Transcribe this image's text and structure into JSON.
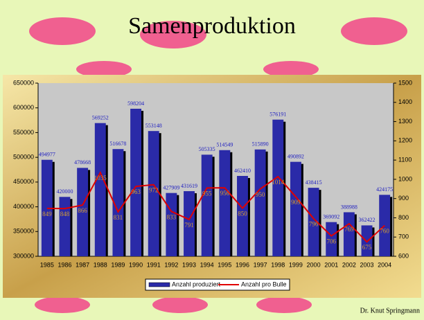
{
  "chart_data": {
    "type": "combo",
    "title": "Samenproduktion",
    "footer": "Dr. Knut Springmann",
    "categories": [
      "1985",
      "1986",
      "1987",
      "1988",
      "1989",
      "1990",
      "1991",
      "1992",
      "1993",
      "1994",
      "1995",
      "1996",
      "1997",
      "1998",
      "1999",
      "2000",
      "2001",
      "2002",
      "2003",
      "2004"
    ],
    "series": [
      {
        "name": "Anzahl produziert",
        "type": "bar",
        "color": "#2a2aa8",
        "values": [
          494977,
          420000,
          478668,
          569252,
          516678,
          598204,
          553148,
          427909,
          431619,
          505335,
          514549,
          462410,
          515890,
          576191,
          490892,
          438415,
          369092,
          388988,
          362422,
          424175
        ]
      },
      {
        "name": "Anzahl pro Bulle",
        "type": "line",
        "axis": "y2",
        "color": "#e00000",
        "values": [
          849,
          848,
          866,
          1035,
          831,
          963,
          972,
          833,
          791,
          955,
          956,
          850,
          950,
          1014,
          909,
          796,
          706,
          769,
          675,
          760
        ]
      }
    ],
    "ylim": [
      300000,
      650000
    ],
    "yticks": [
      300000,
      350000,
      400000,
      450000,
      500000,
      550000,
      600000,
      650000
    ],
    "y2lim": [
      600,
      1500
    ],
    "y2ticks": [
      600,
      700,
      800,
      900,
      1000,
      1100,
      1200,
      1300,
      1400,
      1500
    ]
  }
}
